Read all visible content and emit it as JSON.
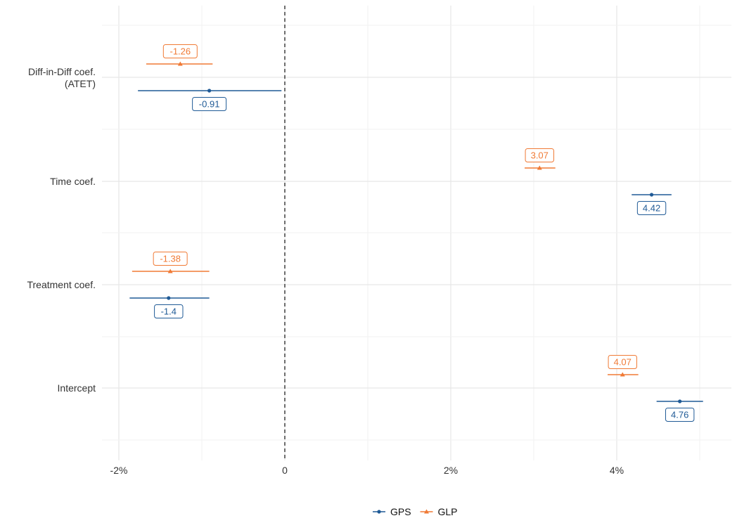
{
  "colors": {
    "GPS": "#1f5a96",
    "GLP": "#f07a35",
    "grid_major": "#e6e6e6",
    "grid_minor": "#f2f2f2",
    "zero_line": "#333333"
  },
  "chart_data": {
    "type": "coefficient-plot",
    "title": "",
    "xlabel": "",
    "ylabel": "",
    "xlim": [
      -2.3,
      5.4
    ],
    "x_ticks": [
      -2,
      0,
      2,
      4
    ],
    "x_tick_labels": [
      "-2%",
      "0",
      "2%",
      "4%"
    ],
    "reference_line": {
      "x": 0,
      "style": "dashed"
    },
    "categories": [
      "Diff-in-Diff coef.\n(ATET)",
      "Time coef.",
      "Treatment coef.",
      "Intercept"
    ],
    "legend": {
      "position": "bottom",
      "entries": [
        "GPS",
        "GLP"
      ]
    },
    "series": [
      {
        "name": "GPS",
        "marker": "circle",
        "points": [
          {
            "category": "Diff-in-Diff coef.\n(ATET)",
            "estimate": -0.91,
            "ci_low": -1.77,
            "ci_high": -0.04,
            "label": "-0.91"
          },
          {
            "category": "Time coef.",
            "estimate": 4.42,
            "ci_low": 4.18,
            "ci_high": 4.66,
            "label": "4.42"
          },
          {
            "category": "Treatment coef.",
            "estimate": -1.4,
            "ci_low": -1.87,
            "ci_high": -0.91,
            "label": "-1.4"
          },
          {
            "category": "Intercept",
            "estimate": 4.76,
            "ci_low": 4.48,
            "ci_high": 5.04,
            "label": "4.76"
          }
        ]
      },
      {
        "name": "GLP",
        "marker": "triangle",
        "points": [
          {
            "category": "Diff-in-Diff coef.\n(ATET)",
            "estimate": -1.26,
            "ci_low": -1.67,
            "ci_high": -0.87,
            "label": "-1.26"
          },
          {
            "category": "Time coef.",
            "estimate": 3.07,
            "ci_low": 2.89,
            "ci_high": 3.26,
            "label": "3.07"
          },
          {
            "category": "Treatment coef.",
            "estimate": -1.38,
            "ci_low": -1.84,
            "ci_high": -0.91,
            "label": "-1.38"
          },
          {
            "category": "Intercept",
            "estimate": 4.07,
            "ci_low": 3.89,
            "ci_high": 4.26,
            "label": "4.07"
          }
        ]
      }
    ]
  }
}
